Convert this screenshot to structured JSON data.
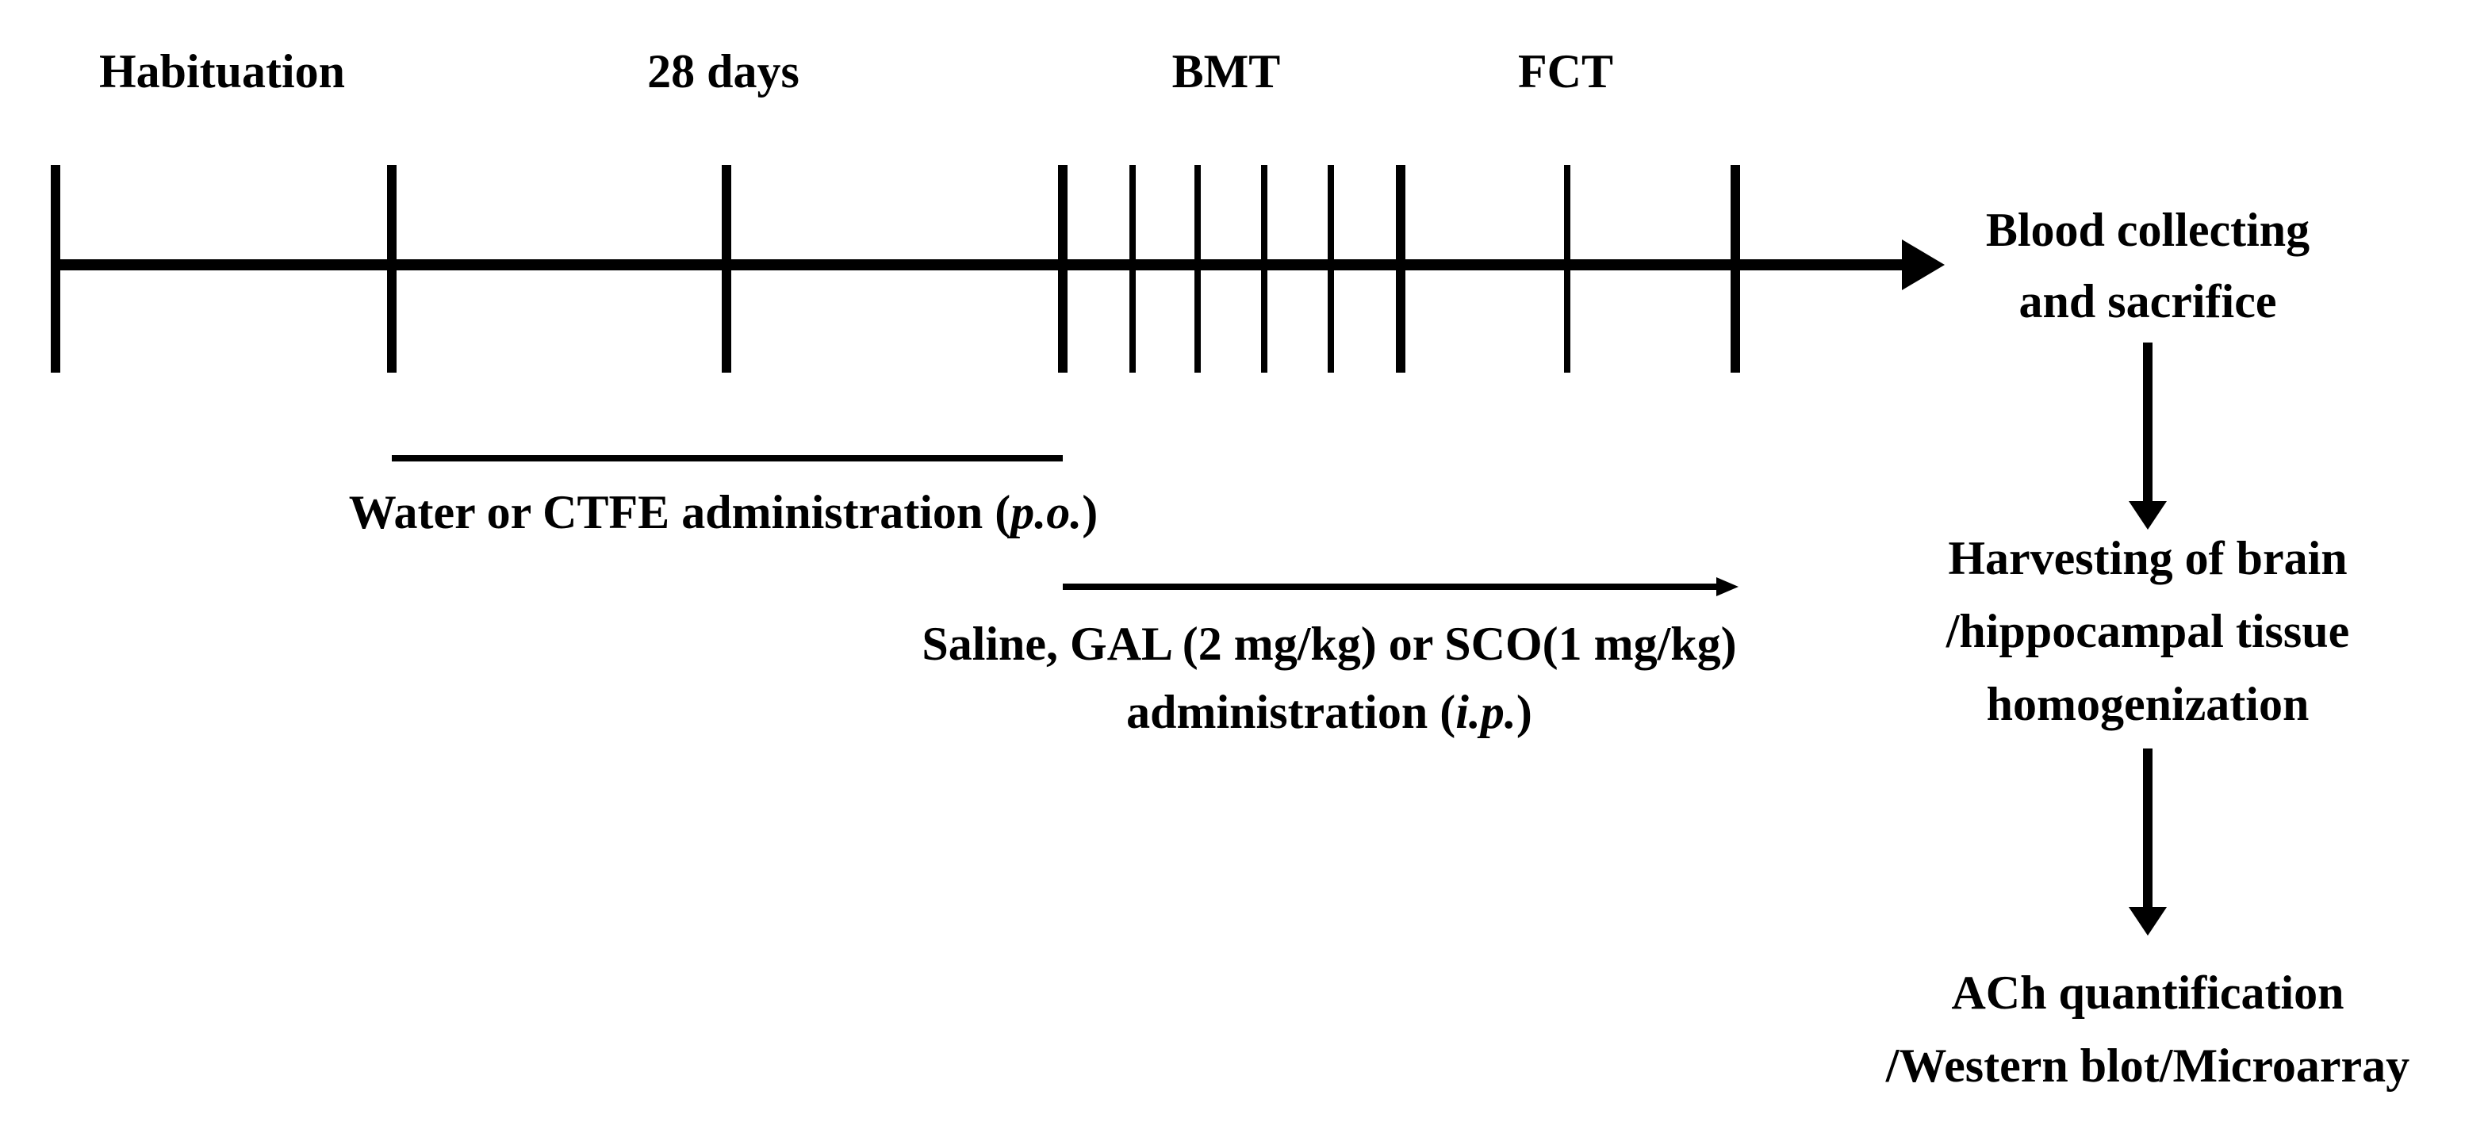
{
  "phase_labels": {
    "habituation": "Habituation",
    "days": "28 days",
    "bmt": "BMT",
    "fct": "FCT"
  },
  "oral_administration": {
    "text": "Water or CTFE administration (",
    "route": "p.o.",
    "close": ")"
  },
  "ip_administration": {
    "line1": "Saline, GAL (2 mg/kg) or SCO(1 mg/kg)",
    "line2_text": "administration (",
    "route": "i.p.",
    "close": ")"
  },
  "flow_steps": {
    "blood": {
      "line1": "Blood collecting",
      "line2": "and sacrifice"
    },
    "harvest": {
      "line1": "Harvesting of brain",
      "line2": "/hippocampal tissue",
      "line3": "homogenization"
    },
    "analysis": {
      "line1": "ACh quantification",
      "line2": "/Western blot/Microarray"
    }
  },
  "colors": {
    "ink": "#000000",
    "background": "#ffffff"
  }
}
